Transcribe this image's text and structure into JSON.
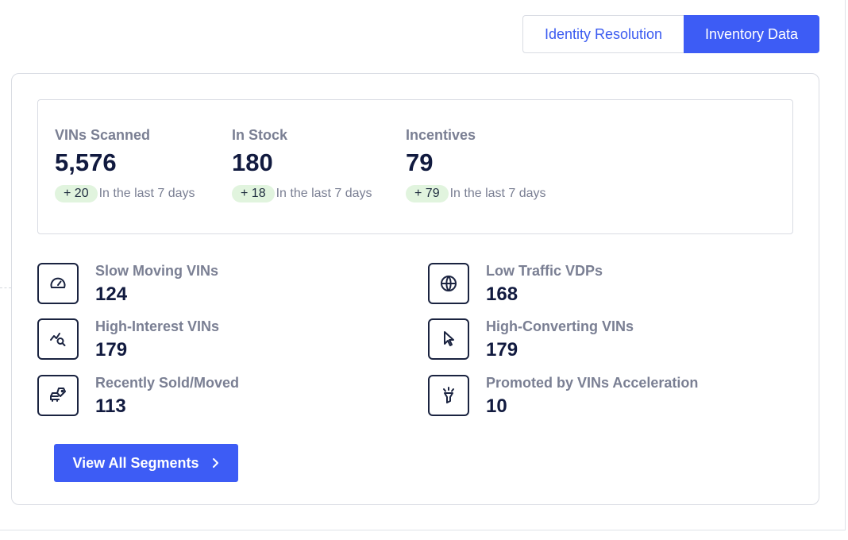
{
  "tabs": [
    {
      "label": "Identity Resolution",
      "active": false
    },
    {
      "label": "Inventory Data",
      "active": true
    }
  ],
  "summary": [
    {
      "label": "VINs Scanned",
      "value": "5,576",
      "delta": "+ 20",
      "delta_text": "In the last 7 days"
    },
    {
      "label": "In Stock",
      "value": "180",
      "delta": "+ 18",
      "delta_text": "In the last 7 days"
    },
    {
      "label": "Incentives",
      "value": "79",
      "delta": "+ 79",
      "delta_text": "In the last 7 days"
    }
  ],
  "segments": [
    {
      "label": "Slow Moving VINs",
      "value": "124",
      "icon": "speedometer-icon"
    },
    {
      "label": "Low Traffic VDPs",
      "value": "168",
      "icon": "globe-icon"
    },
    {
      "label": "High-Interest VINs",
      "value": "179",
      "icon": "trend-search-icon"
    },
    {
      "label": "High-Converting VINs",
      "value": "179",
      "icon": "cursor-icon"
    },
    {
      "label": "Recently Sold/Moved",
      "value": "113",
      "icon": "car-tag-icon"
    },
    {
      "label": "Promoted by VINs Acceleration",
      "value": "10",
      "icon": "spotlight-icon"
    }
  ],
  "view_all": {
    "label": "View All Segments"
  },
  "colors": {
    "accent": "#3d5cf5",
    "delta_badge": "#e1f4de",
    "muted_text": "#7a7f93",
    "value_text": "#111a3f"
  }
}
